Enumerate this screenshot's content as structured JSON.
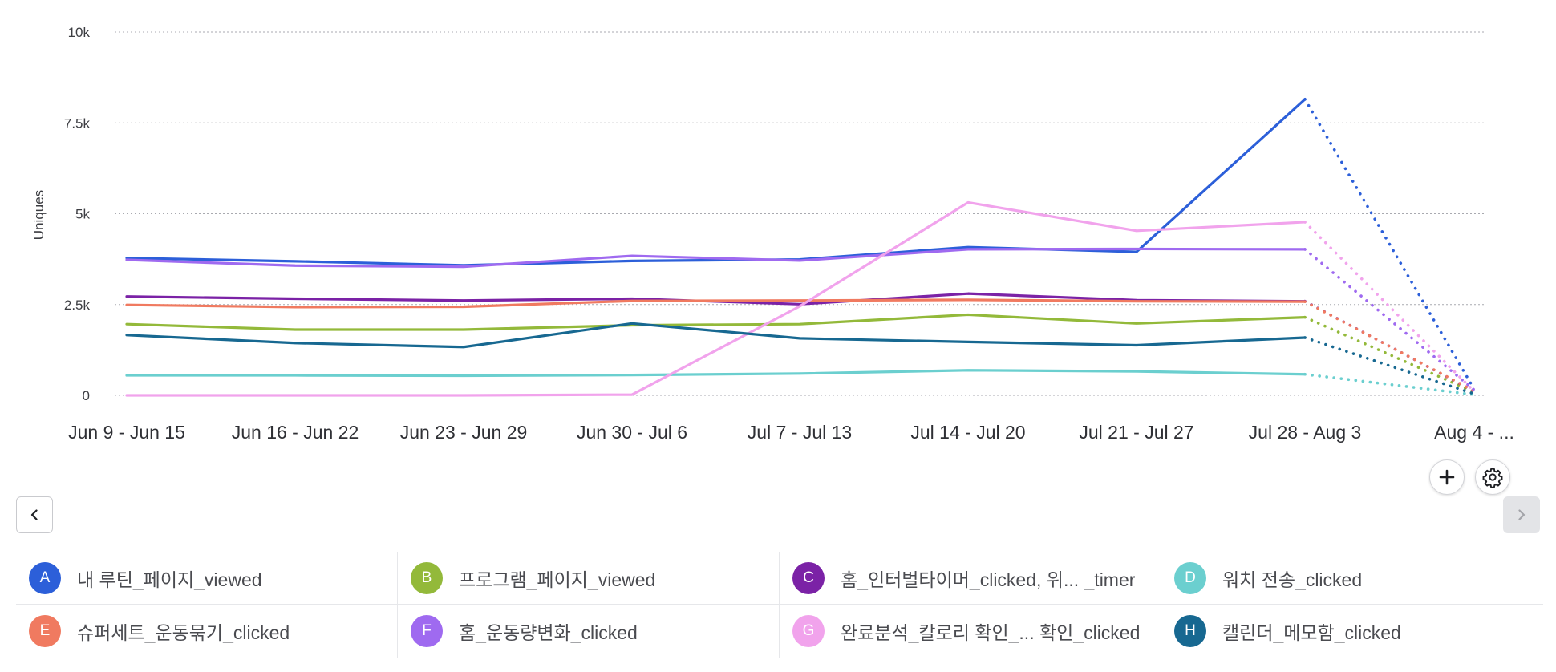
{
  "chart_data": {
    "type": "line",
    "ylabel": "Uniques",
    "xlabel": "",
    "ylim": [
      0,
      10000
    ],
    "yticks": [
      {
        "value": 0,
        "label": "0"
      },
      {
        "value": 2500,
        "label": "2.5k"
      },
      {
        "value": 5000,
        "label": "5k"
      },
      {
        "value": 7500,
        "label": "7.5k"
      },
      {
        "value": 10000,
        "label": "10k"
      }
    ],
    "categories": [
      "Jun 9 - Jun 15",
      "Jun 16 - Jun 22",
      "Jun 23 - Jun 29",
      "Jun 30 - Jul 6",
      "Jul 7 - Jul 13",
      "Jul 14 - Jul 20",
      "Jul 21 - Jul 27",
      "Jul 28 - Aug 3",
      "Aug 4 - ..."
    ],
    "grid": true,
    "incomplete_last_period": true,
    "series": [
      {
        "key": "A",
        "name": "내 루틴_페이지_viewed",
        "color": "#2c5fd9",
        "values": [
          3780,
          3690,
          3580,
          3700,
          3740,
          4080,
          3950,
          8150,
          170
        ]
      },
      {
        "key": "B",
        "name": "프로그램_페이지_viewed",
        "color": "#93b93a",
        "values": [
          1960,
          1810,
          1810,
          1930,
          1960,
          2220,
          1980,
          2150,
          90
        ]
      },
      {
        "key": "C",
        "name": "홈_인터벌타이머_clicked, 위... _timer",
        "color": "#7b22a6",
        "values": [
          2720,
          2660,
          2610,
          2660,
          2510,
          2800,
          2620,
          2590,
          110
        ]
      },
      {
        "key": "D",
        "name": "워치 전송_clicked",
        "color": "#6bcfcf",
        "values": [
          550,
          550,
          540,
          560,
          600,
          690,
          660,
          580,
          20
        ]
      },
      {
        "key": "E",
        "name": "슈퍼세트_운동묶기_clicked",
        "color": "#f07a60",
        "values": [
          2490,
          2430,
          2440,
          2600,
          2610,
          2630,
          2590,
          2580,
          120
        ]
      },
      {
        "key": "F",
        "name": "홈_운동량변화_clicked",
        "color": "#9f6af0",
        "values": [
          3730,
          3570,
          3540,
          3840,
          3710,
          4020,
          4030,
          4020,
          150
        ]
      },
      {
        "key": "G",
        "name": "완료분석_칼로리 확인_... 확인_clicked",
        "color": "#f1a3ec",
        "values": [
          0,
          0,
          0,
          20,
          2450,
          5310,
          4530,
          4770,
          110
        ]
      },
      {
        "key": "H",
        "name": "캘린더_메모함_clicked",
        "color": "#176891",
        "values": [
          1660,
          1440,
          1330,
          1980,
          1570,
          1470,
          1380,
          1590,
          40
        ]
      }
    ]
  },
  "controls": {
    "add_icon": "plus-icon",
    "settings_icon": "gear-icon",
    "prev_icon": "chevron-left-icon",
    "next_icon": "chevron-right-icon"
  }
}
